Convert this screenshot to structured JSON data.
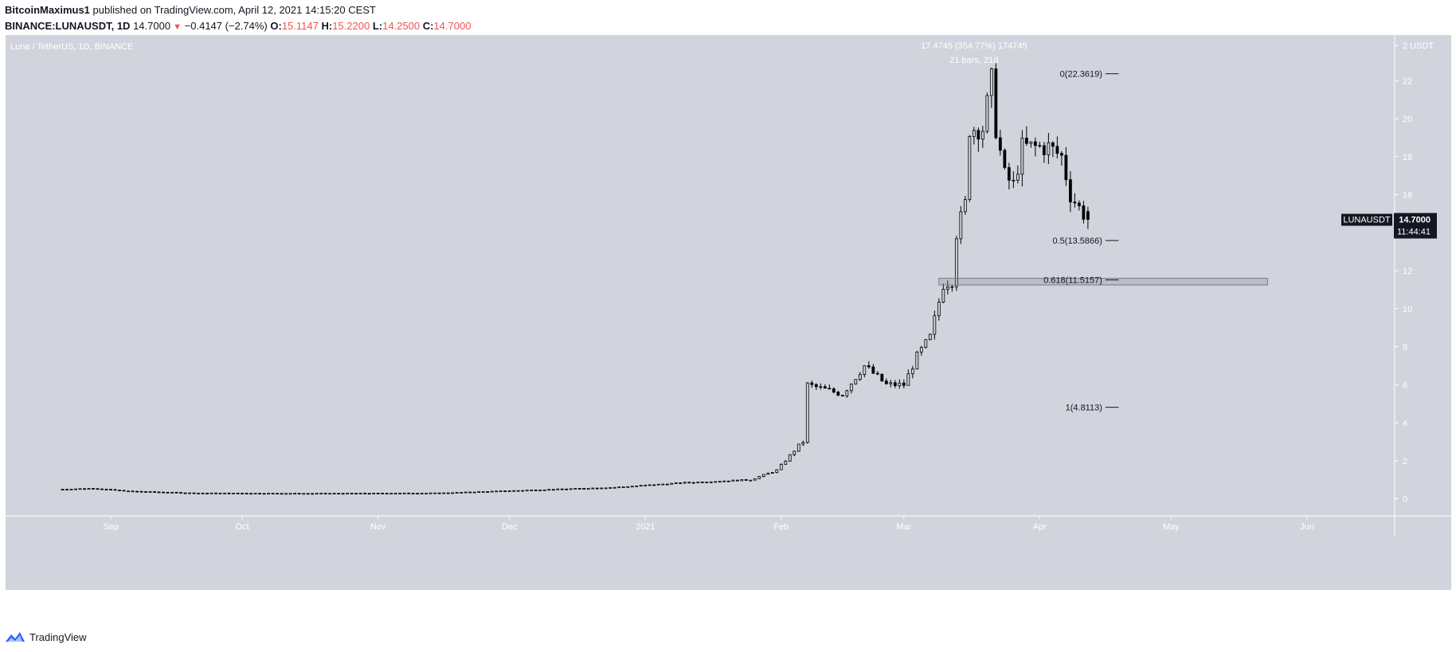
{
  "header": {
    "author": "BitcoinMaximus1",
    "published_text": "published on TradingView.com, April 12, 2021 14:15:20 CEST",
    "symbol": "BINANCE:LUNAUSDT, 1D",
    "last": "14.7000",
    "change": "−0.4147 (−2.74%)",
    "open_label": "O:",
    "open": "15.1147",
    "high_label": "H:",
    "high": "15.2200",
    "low_label": "L:",
    "low": "14.2500",
    "close_label": "C:",
    "close": "14.7000"
  },
  "footer": {
    "brand": "TradingView",
    "icon": "tradingview-logo-icon"
  },
  "colors": {
    "pane_bg": "#d1d4dc",
    "candle": "#000000",
    "axis_text": "#ffffff",
    "price_tag_bg": "#131722",
    "price_change_down": "#ef5350"
  },
  "chart_data": {
    "type": "candlestick",
    "title": "Luna / TetherUS, 1D, BINANCE",
    "y_unit": "USDT",
    "ylim": [
      -0.9,
      24.4
    ],
    "y_ticks": [
      0,
      2,
      4,
      6,
      8,
      10,
      12,
      14,
      16,
      18,
      20,
      22
    ],
    "x_tick_labels": [
      "Sep",
      "Oct",
      "Nov",
      "Dec",
      "2021",
      "Feb",
      "Mar",
      "Apr",
      "May",
      "Jun"
    ],
    "x_range": [
      "2020-08-08",
      "2021-06-21"
    ],
    "current_price": "14.7000",
    "countdown": "11:44:41",
    "symbol_tag": "LUNAUSDT",
    "measure": {
      "line1": "17.4745 (354.77%) 174745",
      "line2": "21 bars, 21d"
    },
    "fibonacci": [
      {
        "label": "0(22.3619)",
        "value": 22.3619
      },
      {
        "label": "0.5(13.5866)",
        "value": 13.5866
      },
      {
        "label": "0.618(11.5157)",
        "value": 11.5157
      },
      {
        "label": "1(4.8113)",
        "value": 4.8113
      }
    ],
    "zone": {
      "from": "2021-03-09",
      "to": "2021-05-23",
      "low": 11.25,
      "high": 11.6
    },
    "anchors": [
      [
        "2020-08-21",
        0.5
      ],
      [
        "2020-08-28",
        0.55
      ],
      [
        "2020-09-05",
        0.4
      ],
      [
        "2020-09-20",
        0.3
      ],
      [
        "2020-10-15",
        0.28
      ],
      [
        "2020-11-15",
        0.3
      ],
      [
        "2020-12-05",
        0.45
      ],
      [
        "2020-12-25",
        0.6
      ],
      [
        "2021-01-10",
        0.85
      ],
      [
        "2021-01-25",
        1.0
      ],
      [
        "2021-01-31",
        1.5
      ],
      [
        "2021-02-05",
        2.8
      ],
      [
        "2021-02-06",
        3.0
      ],
      [
        "2021-02-07",
        6.0
      ],
      [
        "2021-02-15",
        5.5
      ],
      [
        "2021-02-20",
        7.0
      ],
      [
        "2021-02-25",
        6.0
      ],
      [
        "2021-03-01",
        6.0
      ],
      [
        "2021-03-04",
        7.5
      ],
      [
        "2021-03-07",
        8.5
      ],
      [
        "2021-03-10",
        11.3
      ],
      [
        "2021-03-12",
        11.5
      ],
      [
        "2021-03-13",
        14.0
      ],
      [
        "2021-03-15",
        15.5
      ],
      [
        "2021-03-16",
        19.5
      ],
      [
        "2021-03-19",
        19.5
      ],
      [
        "2021-03-21",
        22.0
      ],
      [
        "2021-03-22",
        19.5
      ],
      [
        "2021-03-24",
        17.0
      ],
      [
        "2021-03-26",
        16.5
      ],
      [
        "2021-03-28",
        18.5
      ],
      [
        "2021-04-03",
        18.5
      ],
      [
        "2021-04-06",
        18.0
      ],
      [
        "2021-04-08",
        16.0
      ],
      [
        "2021-04-10",
        15.3
      ],
      [
        "2021-04-12",
        14.7
      ]
    ]
  }
}
